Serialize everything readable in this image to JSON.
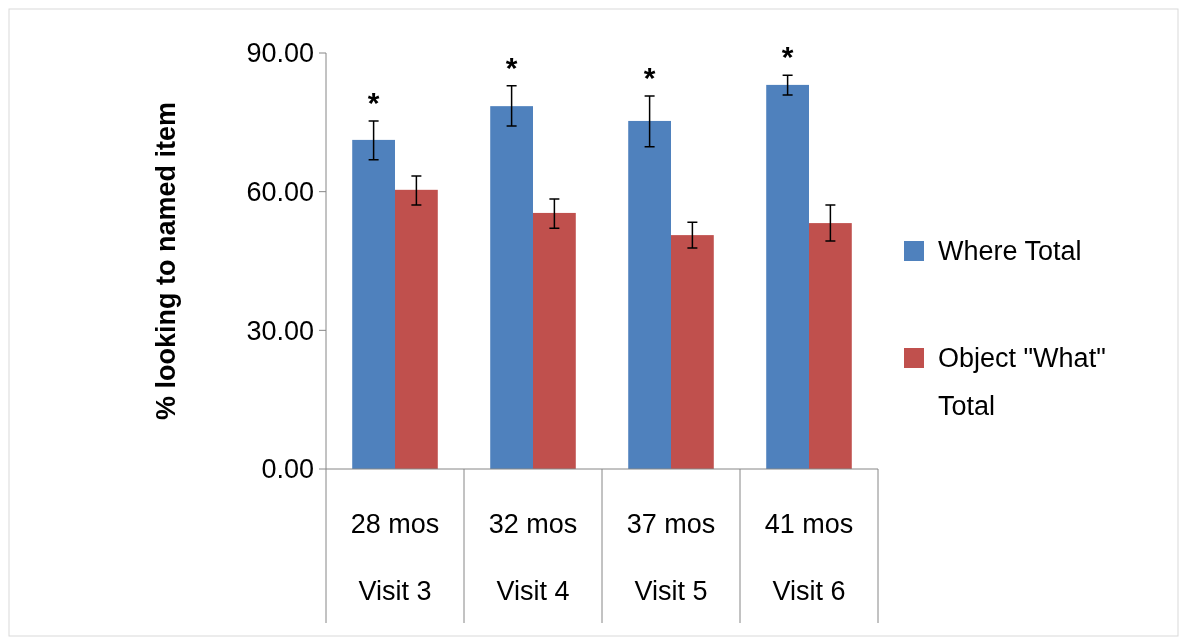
{
  "chart_data": {
    "type": "bar",
    "ylabel": "% looking to named item",
    "categories": [
      "28 mos\nVisit 3",
      "32 mos\nVisit 4",
      "37 mos\nVisit 5",
      "41 mos\nVisit 6"
    ],
    "series": [
      {
        "name": "Where Total",
        "color": "#4f81bd",
        "values": [
          71.2,
          78.5,
          75.3,
          83.1
        ],
        "errors": [
          [
            66.9,
            75.3
          ],
          [
            74.2,
            82.9
          ],
          [
            69.7,
            80.7
          ],
          [
            80.9,
            85.2
          ]
        ]
      },
      {
        "name": "Object \"What\" Total",
        "color": "#c0504d",
        "values": [
          60.4,
          55.4,
          50.6,
          53.2
        ],
        "errors": [
          [
            57.1,
            63.4
          ],
          [
            52.1,
            58.4
          ],
          [
            47.8,
            53.4
          ],
          [
            49.3,
            57.1
          ]
        ]
      }
    ],
    "ylim": [
      0,
      90
    ],
    "yticks": [
      {
        "value": 0,
        "label": "0.00"
      },
      {
        "value": 30,
        "label": "30.00"
      },
      {
        "value": 60,
        "label": "60.00"
      },
      {
        "value": 90,
        "label": "90.00"
      }
    ],
    "annotations": [
      "*",
      "*",
      "*",
      "*"
    ],
    "legend": "right",
    "grid": false
  }
}
